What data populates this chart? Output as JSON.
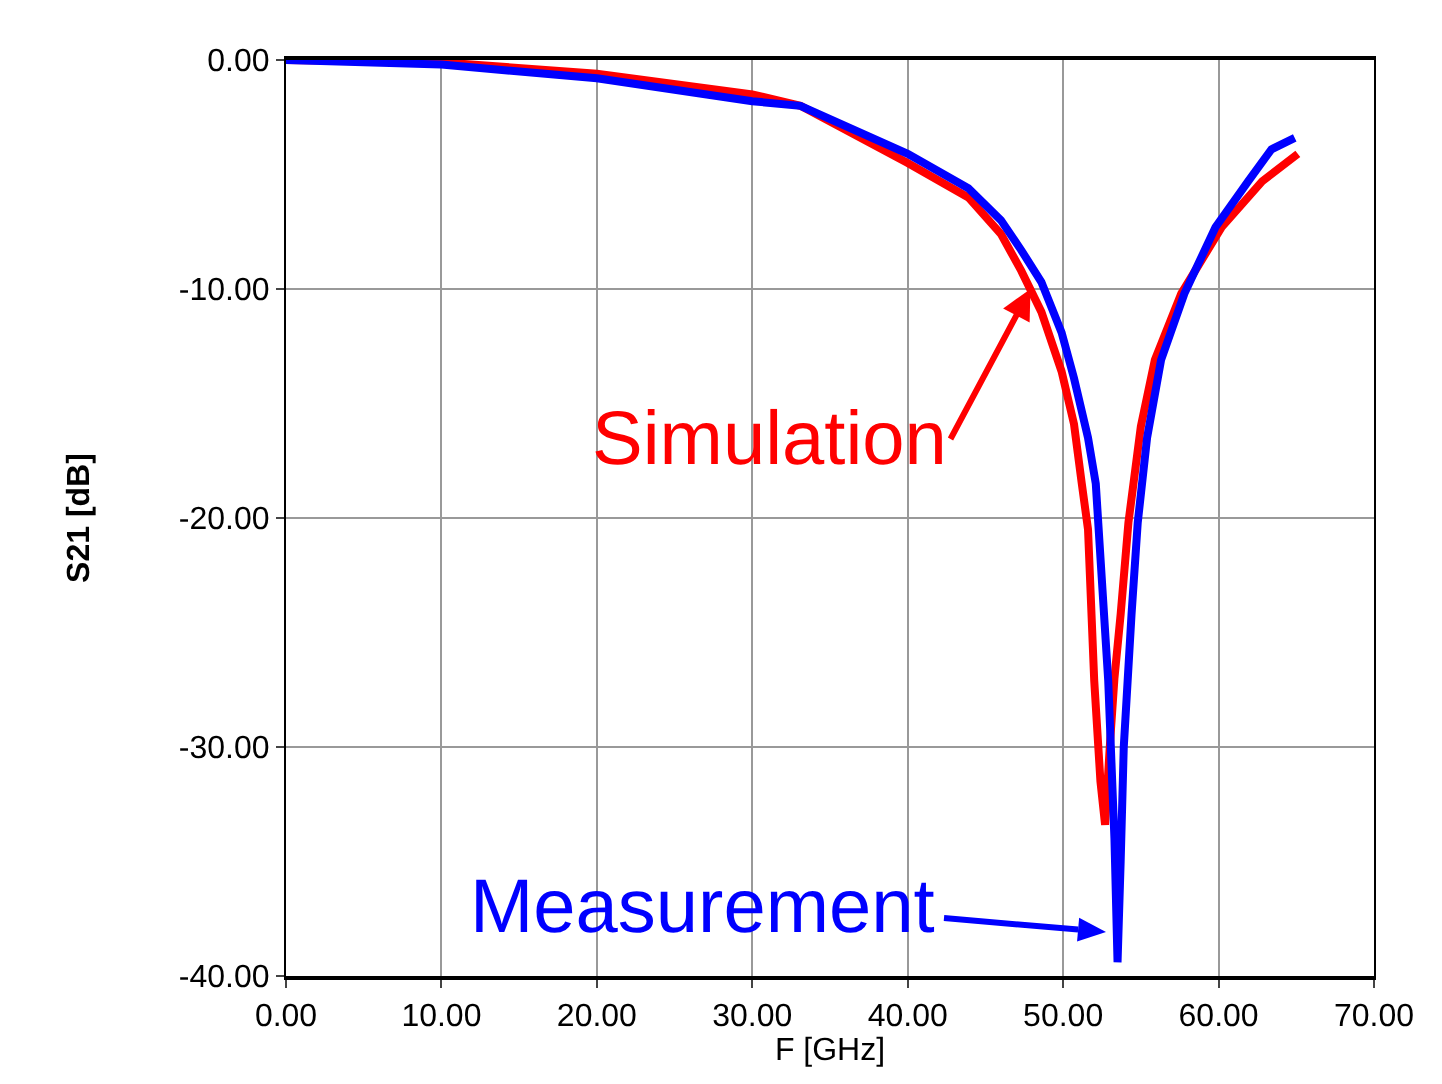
{
  "chart_data": {
    "type": "line",
    "xlabel": "F [GHz]",
    "ylabel": "S21 [dB]",
    "xlim": [
      0,
      70
    ],
    "ylim": [
      -40,
      0
    ],
    "xticks": [
      {
        "value": 0,
        "label": "0.00"
      },
      {
        "value": 10,
        "label": "10.00"
      },
      {
        "value": 20,
        "label": "20.00"
      },
      {
        "value": 30,
        "label": "30.00"
      },
      {
        "value": 40,
        "label": "40.00"
      },
      {
        "value": 50,
        "label": "50.00"
      },
      {
        "value": 60,
        "label": "60.00"
      },
      {
        "value": 70,
        "label": "70.00"
      }
    ],
    "yticks": [
      {
        "value": -40,
        "label": "-40.00"
      },
      {
        "value": -30,
        "label": "-30.00"
      },
      {
        "value": -20,
        "label": "-20.00"
      },
      {
        "value": -10,
        "label": "-10.00"
      },
      {
        "value": 0,
        "label": "0.00"
      }
    ],
    "grid": true,
    "marker": "none",
    "line_style": "solid",
    "series": [
      {
        "color": "#ff0000",
        "x": [
          0,
          10,
          20,
          30,
          33.1,
          40,
          43.9,
          46.0,
          47.3,
          48.6,
          49.9,
          50.7,
          51.2,
          51.6,
          52.0,
          52.4,
          52.7,
          53.0,
          53.3,
          53.7,
          54.2,
          55.0,
          55.9,
          57.6,
          60.2,
          62.8,
          65.1
        ],
        "values": [
          0,
          -0.1,
          -0.6,
          -1.5,
          -2.0,
          -4.5,
          -6.0,
          -7.6,
          -9.2,
          -11.0,
          -13.6,
          -15.9,
          -18.5,
          -20.5,
          -27.1,
          -31.5,
          -33.4,
          -30.0,
          -27.0,
          -24.2,
          -20.2,
          -16.0,
          -13.1,
          -10.2,
          -7.3,
          -5.3,
          -4.1
        ]
      },
      {
        "color": "#0000ff",
        "x": [
          0,
          10,
          20,
          30,
          33.1,
          40,
          43.9,
          46.0,
          47.3,
          48.6,
          49.9,
          50.7,
          51.6,
          52.1,
          52.9,
          53.3,
          53.5,
          53.7,
          53.9,
          54.4,
          54.8,
          55.4,
          56.3,
          57.8,
          59.8,
          61.9,
          63.4,
          64.9
        ],
        "values": [
          0,
          -0.2,
          -0.8,
          -1.8,
          -2.0,
          -4.1,
          -5.6,
          -7.0,
          -8.3,
          -9.7,
          -11.9,
          -13.9,
          -16.5,
          -18.5,
          -27.1,
          -34.0,
          -39.4,
          -35.0,
          -30.0,
          -24.2,
          -20.2,
          -16.5,
          -13.1,
          -10.2,
          -7.3,
          -5.3,
          -3.9,
          -3.4
        ]
      }
    ],
    "annotations": [
      {
        "text": "Simulation",
        "x": 47.9,
        "y": -10
      },
      "Measurement"
    ]
  }
}
